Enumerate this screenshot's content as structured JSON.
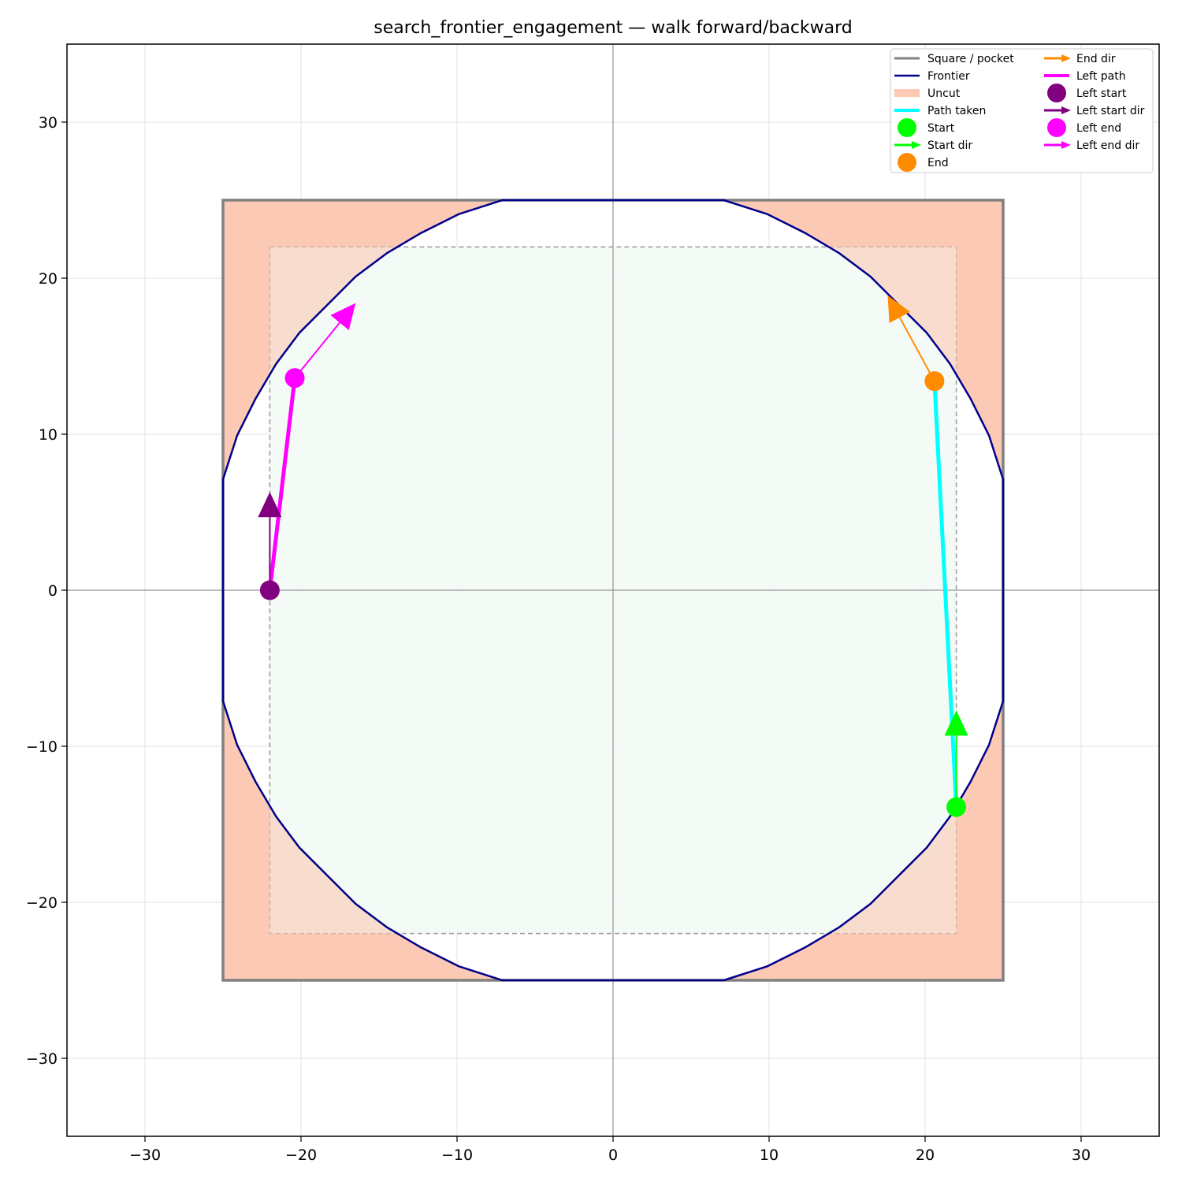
{
  "chart_data": {
    "type": "line",
    "title": "search_frontier_engagement — walk forward/backward",
    "xlabel": "",
    "ylabel": "",
    "xlim": [
      -35,
      35
    ],
    "ylim": [
      -35,
      35
    ],
    "xticks": [
      -30,
      -20,
      -10,
      0,
      10,
      20,
      30
    ],
    "yticks": [
      -30,
      -20,
      -10,
      0,
      10,
      20,
      30
    ],
    "xtick_labels": [
      "−30",
      "−20",
      "−10",
      "0",
      "10",
      "20",
      "30"
    ],
    "ytick_labels": [
      "−30",
      "−20",
      "−10",
      "0",
      "10",
      "20",
      "30"
    ],
    "grid": true,
    "axes_lines": {
      "x": 0,
      "y": 0
    },
    "legend_position": "top-right",
    "square": {
      "x": [
        -25,
        25
      ],
      "y": [
        -25,
        25
      ],
      "color": "#808080"
    },
    "inner_square": {
      "x": [
        -22,
        22
      ],
      "y": [
        -22,
        22
      ],
      "color": "#999999",
      "fill": "#f3f9f4"
    },
    "uncut_color": "#fcc9b5",
    "frontier": {
      "color": "#00008b",
      "points": [
        [
          7.1,
          25
        ],
        [
          9.9,
          24.1
        ],
        [
          12.3,
          22.9
        ],
        [
          14.5,
          21.6
        ],
        [
          16.5,
          20.1
        ],
        [
          18.3,
          18.3
        ],
        [
          20.1,
          16.5
        ],
        [
          21.6,
          14.5
        ],
        [
          22.9,
          12.3
        ],
        [
          24.1,
          9.9
        ],
        [
          25,
          7.1
        ],
        [
          25,
          -7.1
        ],
        [
          24.1,
          -9.9
        ],
        [
          22.9,
          -12.3
        ],
        [
          21.6,
          -14.5
        ],
        [
          20.1,
          -16.5
        ],
        [
          18.3,
          -18.3
        ],
        [
          16.5,
          -20.1
        ],
        [
          14.5,
          -21.6
        ],
        [
          12.3,
          -22.9
        ],
        [
          9.9,
          -24.1
        ],
        [
          7.1,
          -25
        ],
        [
          -7.1,
          -25
        ],
        [
          -9.9,
          -24.1
        ],
        [
          -12.3,
          -22.9
        ],
        [
          -14.5,
          -21.6
        ],
        [
          -16.5,
          -20.1
        ],
        [
          -18.3,
          -18.3
        ],
        [
          -20.1,
          -16.5
        ],
        [
          -21.6,
          -14.5
        ],
        [
          -22.9,
          -12.3
        ],
        [
          -24.1,
          -9.9
        ],
        [
          -25,
          -7.1
        ],
        [
          -25,
          7.1
        ],
        [
          -24.1,
          9.9
        ],
        [
          -22.9,
          12.3
        ],
        [
          -21.6,
          14.5
        ],
        [
          -20.1,
          16.5
        ],
        [
          -18.3,
          18.3
        ],
        [
          -16.5,
          20.1
        ],
        [
          -14.5,
          21.6
        ],
        [
          -12.3,
          22.9
        ],
        [
          -9.9,
          24.1
        ],
        [
          -7.1,
          25
        ]
      ]
    },
    "path_taken": {
      "color": "#00ffff",
      "points": [
        [
          22,
          -13.9
        ],
        [
          20.6,
          13.4
        ]
      ]
    },
    "left_path": {
      "color": "#ff00ff",
      "points": [
        [
          -22,
          0
        ],
        [
          -20.4,
          13.6
        ]
      ]
    },
    "markers": [
      {
        "name": "Start",
        "x": 22,
        "y": -13.9,
        "color": "#00ff00"
      },
      {
        "name": "End",
        "x": 20.6,
        "y": 13.4,
        "color": "#ff8c00"
      },
      {
        "name": "Left start",
        "x": -22,
        "y": 0,
        "color": "#800080"
      },
      {
        "name": "Left end",
        "x": -20.4,
        "y": 13.6,
        "color": "#ff00ff"
      }
    ],
    "arrows": [
      {
        "name": "Start dir",
        "from": [
          22,
          -13.9
        ],
        "to": [
          22,
          -7.7
        ],
        "color": "#00ff00"
      },
      {
        "name": "End dir",
        "from": [
          20.6,
          13.4
        ],
        "to": [
          17.6,
          18.9
        ],
        "color": "#ff8c00"
      },
      {
        "name": "Left start dir",
        "from": [
          -22,
          0
        ],
        "to": [
          -22,
          6.3
        ],
        "color": "#800080"
      },
      {
        "name": "Left end dir",
        "from": [
          -20.4,
          13.6
        ],
        "to": [
          -16.5,
          18.4
        ],
        "color": "#ff00ff"
      }
    ],
    "legend": [
      {
        "label": "Square / pocket",
        "kind": "line",
        "color": "#808080"
      },
      {
        "label": "Frontier",
        "kind": "line",
        "color": "#00008b"
      },
      {
        "label": "Uncut",
        "kind": "patch",
        "color": "#fcc9b5"
      },
      {
        "label": "Path taken",
        "kind": "thickline",
        "color": "#00ffff"
      },
      {
        "label": "Start",
        "kind": "marker",
        "color": "#00ff00"
      },
      {
        "label": "Start dir",
        "kind": "arrow",
        "color": "#00ff00"
      },
      {
        "label": "End",
        "kind": "marker",
        "color": "#ff8c00"
      },
      {
        "label": "End dir",
        "kind": "arrow",
        "color": "#ff8c00"
      },
      {
        "label": "Left path",
        "kind": "thickline",
        "color": "#ff00ff"
      },
      {
        "label": "Left start",
        "kind": "marker",
        "color": "#800080"
      },
      {
        "label": "Left start dir",
        "kind": "arrow",
        "color": "#800080"
      },
      {
        "label": "Left end",
        "kind": "marker",
        "color": "#ff00ff"
      },
      {
        "label": "Left end dir",
        "kind": "arrow",
        "color": "#ff00ff"
      }
    ]
  }
}
